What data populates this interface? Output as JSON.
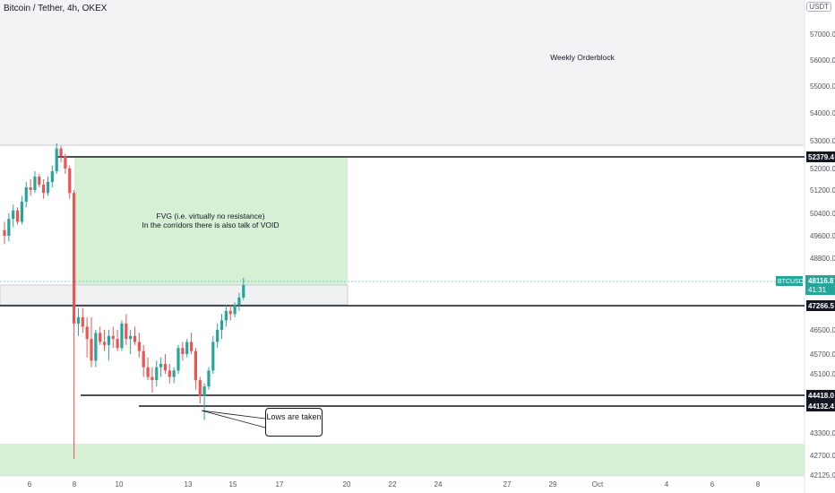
{
  "header": {
    "title": "Bitcoin / Tether, 4h, OKEX",
    "currency_unit": "USDT"
  },
  "annotations": {
    "orderblock": "Weekly Orderblock",
    "fvg_line1": "FVG (i.e. virtually no resistance)",
    "fvg_line2": "In the corridors there is also talk of VOID",
    "callout": "Lows are taken"
  },
  "colors": {
    "up": "#26a69a",
    "down": "#ef5350",
    "fvg": "#d6f0d6",
    "orderblock": "#f2f3f5"
  },
  "chart_data": {
    "type": "candlestick",
    "symbol": "BTCUSDT",
    "last_price": "48116.8",
    "countdown": "41:31",
    "x_tick_labels": [
      "6",
      "8",
      "10",
      "13",
      "15",
      "17",
      "20",
      "22",
      "24",
      "27",
      "29",
      "Oct",
      "4",
      "6",
      "8"
    ],
    "y_tick_labels": [
      "57000.0",
      "56000.0",
      "55000.0",
      "54000.0",
      "53000.0",
      "52000.0",
      "51200.0",
      "50400.0",
      "49600.0",
      "48800.0",
      "46500.0",
      "45700.0",
      "45100.0",
      "43300.0",
      "42700.0",
      "42125.0"
    ],
    "price_levels": [
      {
        "label": "52379.4"
      },
      {
        "label": "47266.5"
      },
      {
        "label": "44418.0"
      },
      {
        "label": "44132.4"
      }
    ],
    "candles": [
      [
        0,
        49800,
        50100,
        49300,
        49600
      ],
      [
        1,
        49600,
        50400,
        49400,
        50200
      ],
      [
        2,
        50200,
        50700,
        49900,
        50500
      ],
      [
        3,
        50500,
        50600,
        50000,
        50100
      ],
      [
        4,
        50100,
        51000,
        50000,
        50800
      ],
      [
        5,
        50800,
        51500,
        50600,
        51300
      ],
      [
        6,
        51300,
        51600,
        51000,
        51200
      ],
      [
        7,
        51200,
        51900,
        51100,
        51700
      ],
      [
        8,
        51700,
        51800,
        51300,
        51400
      ],
      [
        9,
        51400,
        51600,
        50900,
        51100
      ],
      [
        10,
        51100,
        51700,
        51000,
        51500
      ],
      [
        11,
        51500,
        52100,
        51300,
        51900
      ],
      [
        12,
        51900,
        52900,
        51800,
        52700
      ],
      [
        13,
        52700,
        52800,
        52200,
        52400
      ],
      [
        14,
        52400,
        52500,
        51800,
        52000
      ],
      [
        15,
        52000,
        52100,
        50900,
        51100
      ],
      [
        16,
        51100,
        51200,
        42600,
        46700
      ],
      [
        17,
        46700,
        47200,
        46300,
        46900
      ],
      [
        18,
        46900,
        47200,
        46400,
        46600
      ],
      [
        19,
        46600,
        46900,
        45600,
        46200
      ],
      [
        20,
        46200,
        46900,
        45300,
        45500
      ],
      [
        21,
        45500,
        46500,
        45300,
        46400
      ],
      [
        22,
        46400,
        46600,
        46000,
        46100
      ],
      [
        23,
        46100,
        46500,
        45800,
        46000
      ],
      [
        24,
        46000,
        46500,
        45500,
        46300
      ],
      [
        25,
        46300,
        46600,
        45900,
        46200
      ],
      [
        26,
        46200,
        46500,
        45800,
        45900
      ],
      [
        27,
        45900,
        46800,
        45800,
        46700
      ],
      [
        28,
        46700,
        47000,
        46000,
        46200
      ],
      [
        29,
        46200,
        46500,
        45700,
        46300
      ],
      [
        30,
        46300,
        46600,
        46000,
        46100
      ],
      [
        31,
        46100,
        46400,
        45600,
        45800
      ],
      [
        32,
        45800,
        46000,
        45000,
        45300
      ],
      [
        33,
        45300,
        45600,
        44900,
        45000
      ],
      [
        34,
        45000,
        45300,
        44500,
        44900
      ],
      [
        35,
        44900,
        45500,
        44700,
        45300
      ],
      [
        36,
        45300,
        45600,
        45000,
        45400
      ],
      [
        37,
        45400,
        45700,
        45100,
        45200
      ],
      [
        38,
        45200,
        45400,
        44800,
        45000
      ],
      [
        39,
        45000,
        45300,
        44800,
        45200
      ],
      [
        40,
        45200,
        46000,
        45100,
        45900
      ],
      [
        41,
        45900,
        46100,
        45500,
        45700
      ],
      [
        42,
        45700,
        46200,
        45600,
        46100
      ],
      [
        43,
        46100,
        46400,
        45700,
        45800
      ],
      [
        44,
        45800,
        45900,
        44600,
        44900
      ],
      [
        45,
        44900,
        45000,
        44200,
        44400
      ],
      [
        46,
        44400,
        44800,
        43700,
        44700
      ],
      [
        47,
        44700,
        45300,
        44600,
        45200
      ],
      [
        48,
        45200,
        46300,
        45100,
        46100
      ],
      [
        49,
        46100,
        46700,
        45900,
        46500
      ],
      [
        50,
        46500,
        47000,
        46200,
        46800
      ],
      [
        51,
        46800,
        47300,
        46600,
        47100
      ],
      [
        52,
        47100,
        47300,
        46800,
        47000
      ],
      [
        53,
        47000,
        47400,
        46900,
        47300
      ],
      [
        54,
        47300,
        47800,
        47100,
        47600
      ],
      [
        55,
        47600,
        48300,
        47500,
        48117
      ]
    ]
  }
}
